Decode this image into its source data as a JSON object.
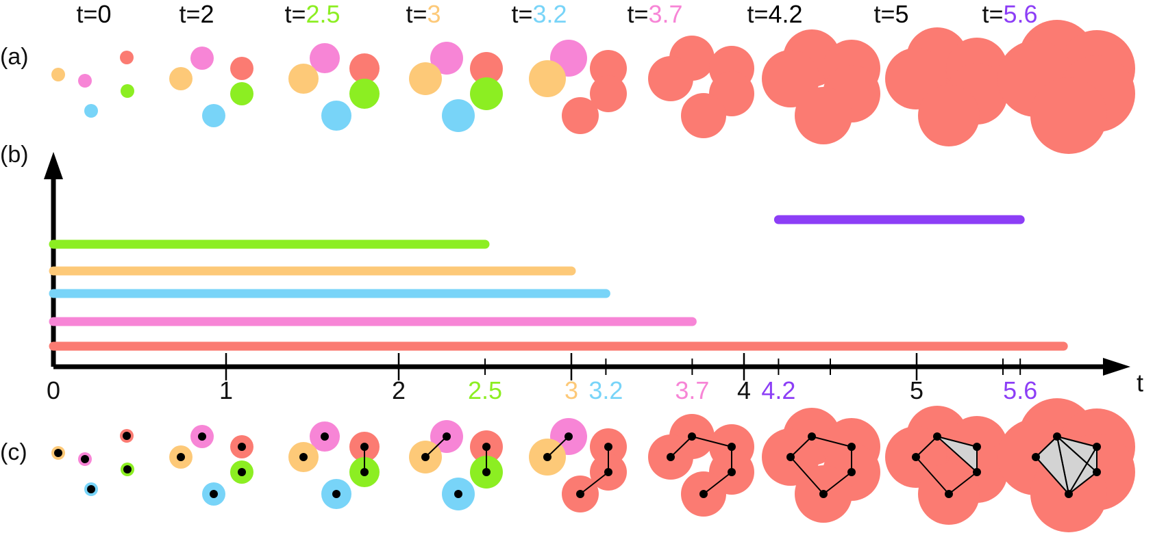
{
  "colors": {
    "green": "#8cee22",
    "orange": "#fdc978",
    "blue": "#78d4f8",
    "pink": "#f785d6",
    "red": "#fb7b72",
    "purple": "#8c3ef6",
    "black": "#000000",
    "gray": "#d3d3d3"
  },
  "panel_labels": {
    "a": "(a)",
    "b": "(b)",
    "c": "(c)"
  },
  "time_headers": [
    {
      "prefix": "t=",
      "value": "0",
      "color": "black"
    },
    {
      "prefix": "t=",
      "value": "2",
      "color": "black"
    },
    {
      "prefix": "t=",
      "value": "2.5",
      "color": "green"
    },
    {
      "prefix": "t=",
      "value": "3",
      "color": "orange"
    },
    {
      "prefix": "t=",
      "value": "3.2",
      "color": "blue"
    },
    {
      "prefix": "t=",
      "value": "3.7",
      "color": "pink"
    },
    {
      "prefix": "t=",
      "value": "4.2",
      "color": "black"
    },
    {
      "prefix": "t=",
      "value": "5",
      "color": "black"
    },
    {
      "prefix": "t=",
      "value": "5.6",
      "color": "purple"
    }
  ],
  "barcode": {
    "axis_label": "t",
    "tick_labels": [
      {
        "text": "0",
        "t": 0,
        "color": "black"
      },
      {
        "text": "1",
        "t": 1,
        "color": "black"
      },
      {
        "text": "2",
        "t": 2,
        "color": "black"
      },
      {
        "text": "2.5",
        "t": 2.5,
        "color": "green"
      },
      {
        "text": "3",
        "t": 3,
        "color": "orange"
      },
      {
        "text": "3.2",
        "t": 3.2,
        "color": "blue"
      },
      {
        "text": "3.7",
        "t": 3.7,
        "color": "pink"
      },
      {
        "text": "4",
        "t": 4,
        "color": "black"
      },
      {
        "text": "4.2",
        "t": 4.2,
        "color": "purple"
      },
      {
        "text": "5",
        "t": 5,
        "color": "black"
      },
      {
        "text": "5.6",
        "t": 5.6,
        "color": "purple"
      }
    ],
    "major_ticks": [
      1,
      2,
      3,
      4,
      5
    ],
    "minor_ticks": [
      2.5,
      3.2,
      3.7,
      4.2,
      4.5,
      5.5,
      5.6
    ],
    "bars": [
      {
        "birth": 4.2,
        "death": 5.6,
        "color": "purple"
      },
      {
        "birth": 0,
        "death": 2.5,
        "color": "green"
      },
      {
        "birth": 0,
        "death": 3.0,
        "color": "orange"
      },
      {
        "birth": 0,
        "death": 3.2,
        "color": "blue"
      },
      {
        "birth": 0,
        "death": 3.7,
        "color": "pink"
      },
      {
        "birth": 0,
        "death": 5.85,
        "color": "red"
      }
    ]
  }
}
